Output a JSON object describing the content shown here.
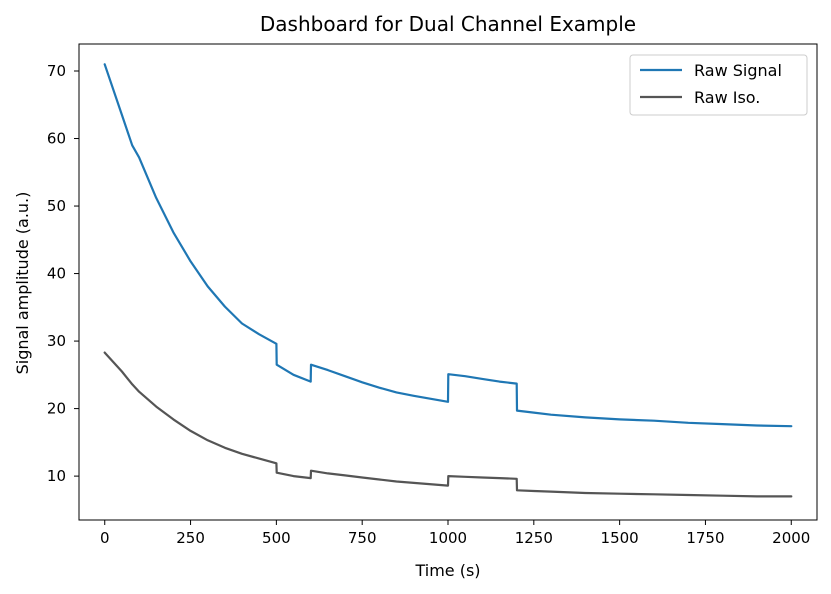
{
  "chart_data": {
    "type": "line",
    "title": "Dashboard for Dual Channel Example",
    "xlabel": "Time (s)",
    "ylabel": "Signal amplitude (a.u.)",
    "xlim": [
      -75,
      2075
    ],
    "ylim": [
      3.5,
      74
    ],
    "x_ticks": [
      "0",
      "250",
      "500",
      "750",
      "1000",
      "1250",
      "1500",
      "1750",
      "2000"
    ],
    "y_ticks": [
      "10",
      "20",
      "30",
      "40",
      "50",
      "60",
      "70"
    ],
    "grid": false,
    "legend_position": "top-right",
    "series": [
      {
        "name": "Raw Signal",
        "color": "#1f77b4",
        "x": [
          0,
          50,
          80,
          100,
          150,
          200,
          250,
          300,
          350,
          400,
          450,
          500,
          501,
          550,
          600,
          601,
          650,
          700,
          750,
          800,
          850,
          900,
          1000,
          1001,
          1050,
          1100,
          1150,
          1200,
          1201,
          1250,
          1300,
          1400,
          1500,
          1600,
          1700,
          1800,
          1900,
          2000
        ],
        "y": [
          71.0,
          63.5,
          59.0,
          57.2,
          51.2,
          46.1,
          41.8,
          38.1,
          35.1,
          32.6,
          31.0,
          29.6,
          26.5,
          25.0,
          24.0,
          26.5,
          25.7,
          24.8,
          23.9,
          23.1,
          22.4,
          21.9,
          21.0,
          25.1,
          24.8,
          24.4,
          24.0,
          23.7,
          19.7,
          19.4,
          19.1,
          18.7,
          18.4,
          18.2,
          17.9,
          17.7,
          17.5,
          17.4
        ]
      },
      {
        "name": "Raw Iso.",
        "color": "#555555",
        "x": [
          0,
          50,
          80,
          100,
          150,
          200,
          250,
          300,
          350,
          400,
          450,
          500,
          501,
          550,
          600,
          601,
          650,
          700,
          750,
          800,
          850,
          900,
          1000,
          1001,
          1050,
          1100,
          1150,
          1200,
          1201,
          1250,
          1300,
          1400,
          1500,
          1600,
          1700,
          1800,
          1900,
          2000
        ],
        "y": [
          28.3,
          25.5,
          23.6,
          22.5,
          20.3,
          18.4,
          16.7,
          15.3,
          14.2,
          13.3,
          12.6,
          11.9,
          10.5,
          10.0,
          9.7,
          10.8,
          10.4,
          10.1,
          9.8,
          9.5,
          9.2,
          9.0,
          8.6,
          10.0,
          9.9,
          9.8,
          9.7,
          9.6,
          7.9,
          7.8,
          7.7,
          7.5,
          7.4,
          7.3,
          7.2,
          7.1,
          7.0,
          7.0
        ]
      }
    ]
  }
}
